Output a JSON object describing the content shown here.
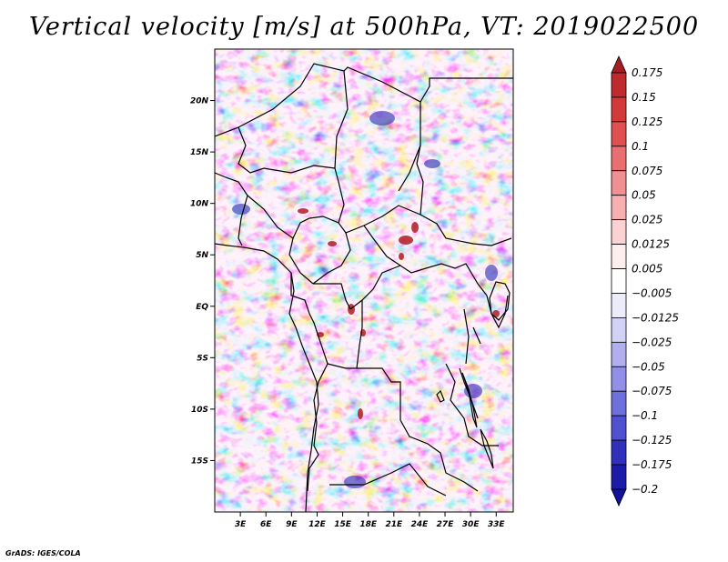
{
  "title": "Vertical velocity [m/s] at 500hPa, VT: 2019022500",
  "credit": "GrADS: IGES/COLA",
  "map": {
    "lat_labels": [
      "20N",
      "15N",
      "10N",
      "5N",
      "EQ",
      "5S",
      "10S",
      "15S"
    ],
    "lat_values": [
      20,
      15,
      10,
      5,
      0,
      -5,
      -10,
      -15
    ],
    "lon_labels": [
      "3E",
      "6E",
      "9E",
      "12E",
      "15E",
      "18E",
      "21E",
      "24E",
      "27E",
      "30E",
      "33E"
    ],
    "lon_values": [
      3,
      6,
      9,
      12,
      15,
      18,
      21,
      24,
      27,
      30,
      33
    ],
    "lat_range": [
      -20,
      25
    ],
    "lon_range": [
      0,
      35
    ]
  },
  "colorbar": {
    "labels": [
      "0.175",
      "0.15",
      "0.125",
      "0.1",
      "0.075",
      "0.05",
      "0.025",
      "0.0125",
      "0.005",
      "−0.005",
      "−0.0125",
      "−0.025",
      "−0.05",
      "−0.075",
      "−0.1",
      "−0.125",
      "−0.175",
      "−0.2"
    ],
    "colors": [
      "#a51c24",
      "#be2a2d",
      "#d23a3a",
      "#e05050",
      "#e87070",
      "#f09090",
      "#f6b0b0",
      "#fad2d2",
      "#fdeeee",
      "#ffffff",
      "#ececfb",
      "#d2d2f6",
      "#b0b0ee",
      "#9090e6",
      "#7070dc",
      "#5050d0",
      "#3030bc",
      "#1c1ca8",
      "#12129a"
    ]
  }
}
